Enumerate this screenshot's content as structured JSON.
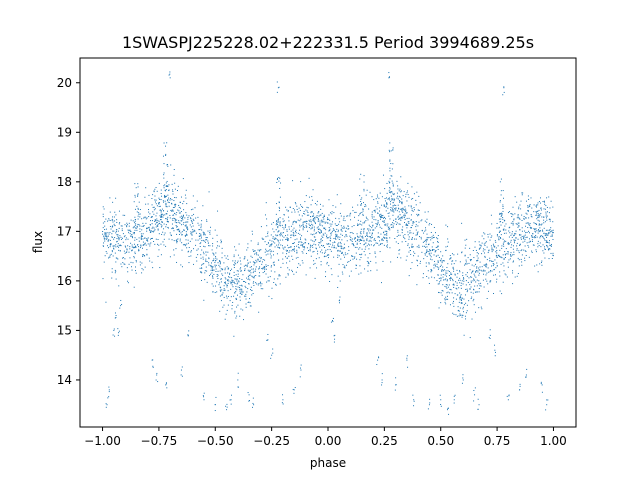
{
  "chart_data": {
    "type": "scatter",
    "title": "1SWASPJ225228.02+222331.5 Period 3994689.25s",
    "xlabel": "phase",
    "ylabel": "flux",
    "xlim": [
      -1.1,
      1.1
    ],
    "ylim": [
      13.05,
      20.5
    ],
    "xticks": [
      -1.0,
      -0.75,
      -0.5,
      -0.25,
      0.0,
      0.25,
      0.5,
      0.75,
      1.0
    ],
    "xtick_labels": [
      "−1.00",
      "−0.75",
      "−0.50",
      "−0.25",
      "0.00",
      "0.25",
      "0.50",
      "0.75",
      "1.00"
    ],
    "yticks": [
      14,
      15,
      16,
      17,
      18,
      19,
      20
    ],
    "ytick_labels": [
      "14",
      "15",
      "16",
      "17",
      "18",
      "19",
      "20"
    ],
    "grid": false,
    "marker_color": "#1f77b4",
    "series": [
      {
        "profile_x": [
          0.0,
          0.05,
          0.1,
          0.15,
          0.2,
          0.25,
          0.3,
          0.35,
          0.4,
          0.45,
          0.5,
          0.55,
          0.6,
          0.65,
          0.7,
          0.75,
          0.8,
          0.85,
          0.9,
          0.95,
          1.0
        ],
        "profile_y": [
          16.9,
          16.85,
          16.8,
          16.8,
          17.0,
          17.2,
          17.4,
          17.2,
          17.0,
          16.6,
          16.3,
          16.0,
          15.9,
          16.1,
          16.4,
          16.6,
          16.8,
          16.9,
          17.0,
          17.1,
          16.9
        ],
        "scatter_spread": 0.35,
        "n_points_per_half": 1700,
        "outliers": [
          [
            -0.98,
            13.5
          ],
          [
            -0.97,
            13.8
          ],
          [
            -0.95,
            15.0
          ],
          [
            -0.94,
            15.3
          ],
          [
            -0.93,
            14.9
          ],
          [
            -0.92,
            15.5
          ],
          [
            -0.78,
            14.4
          ],
          [
            -0.76,
            14.1
          ],
          [
            -0.72,
            13.9
          ],
          [
            -0.7,
            20.1
          ],
          [
            -0.65,
            14.2
          ],
          [
            -0.62,
            14.9
          ],
          [
            -0.55,
            13.6
          ],
          [
            -0.5,
            13.5
          ],
          [
            -0.45,
            13.4
          ],
          [
            -0.43,
            13.6
          ],
          [
            -0.4,
            14.0
          ],
          [
            -0.35,
            13.7
          ],
          [
            -0.33,
            13.5
          ],
          [
            -0.27,
            14.8
          ],
          [
            -0.25,
            14.5
          ],
          [
            -0.22,
            19.9
          ],
          [
            -0.2,
            13.6
          ],
          [
            -0.15,
            13.8
          ],
          [
            -0.12,
            14.2
          ],
          [
            0.02,
            15.2
          ],
          [
            0.03,
            14.9
          ],
          [
            0.05,
            15.6
          ],
          [
            0.22,
            14.4
          ],
          [
            0.24,
            14.0
          ],
          [
            0.27,
            20.1
          ],
          [
            0.3,
            13.9
          ],
          [
            0.35,
            14.4
          ],
          [
            0.38,
            13.6
          ],
          [
            0.45,
            13.5
          ],
          [
            0.5,
            13.6
          ],
          [
            0.53,
            13.4
          ],
          [
            0.56,
            13.6
          ],
          [
            0.6,
            14.0
          ],
          [
            0.65,
            13.7
          ],
          [
            0.67,
            13.5
          ],
          [
            0.72,
            14.9
          ],
          [
            0.74,
            14.6
          ],
          [
            0.78,
            19.9
          ],
          [
            0.8,
            13.6
          ],
          [
            0.85,
            13.8
          ],
          [
            0.88,
            14.1
          ],
          [
            0.95,
            13.9
          ],
          [
            0.97,
            13.5
          ]
        ],
        "peaks": [
          [
            -0.72,
            18.8
          ],
          [
            -0.22,
            18.1
          ],
          [
            0.28,
            18.8
          ],
          [
            0.77,
            18.1
          ],
          [
            0.15,
            18.2
          ],
          [
            -0.85,
            18.0
          ]
        ]
      }
    ]
  }
}
